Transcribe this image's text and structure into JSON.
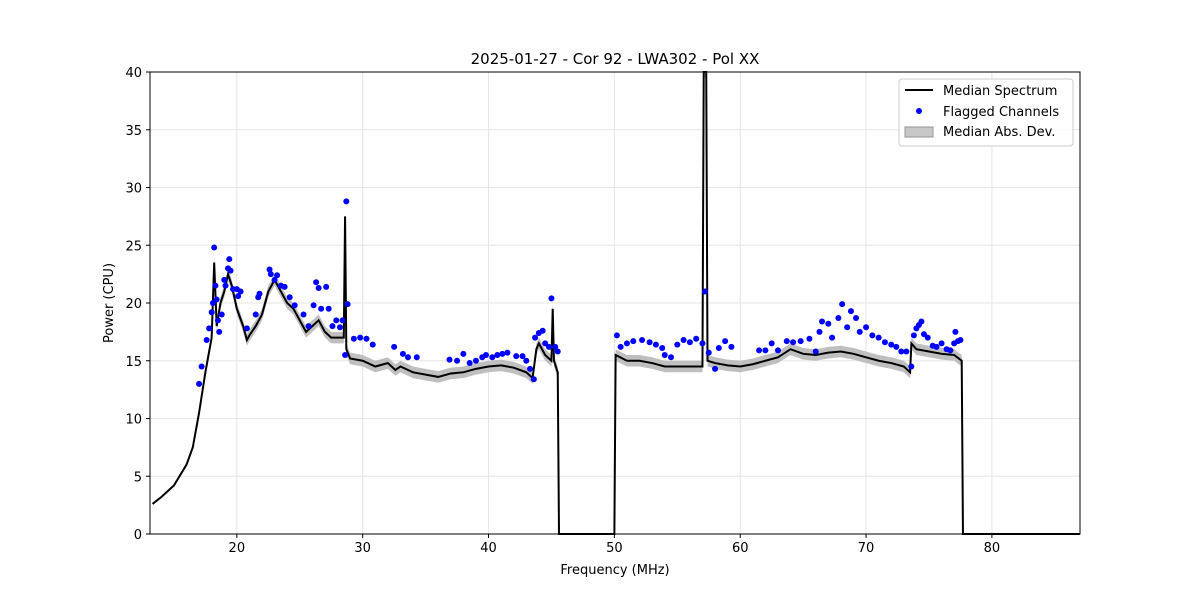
{
  "chart_data": {
    "type": "line",
    "title": "2025-01-27 - Cor 92 - LWA302 - Pol XX",
    "xlabel": "Frequency (MHz)",
    "ylabel": "Power (CPU)",
    "xlim": [
      13.1,
      87.0
    ],
    "ylim": [
      0,
      40
    ],
    "xticks": [
      20,
      30,
      40,
      50,
      60,
      70,
      80
    ],
    "yticks": [
      0,
      5,
      10,
      15,
      20,
      25,
      30,
      35,
      40
    ],
    "grid": true,
    "legend_placement": "top-right",
    "legend": [
      "Median Spectrum",
      "Flagged Channels",
      "Median Abs. Dev."
    ],
    "colors": {
      "median": "#000000",
      "flagged": "#0000ff",
      "mad": "#bfbfbf"
    },
    "mad_halfwidth": 0.5,
    "median_spectrum": [
      [
        13.3,
        2.6
      ],
      [
        14,
        3.2
      ],
      [
        15,
        4.2
      ],
      [
        16,
        6
      ],
      [
        16.5,
        7.5
      ],
      [
        17,
        10.5
      ],
      [
        17.5,
        14
      ],
      [
        18,
        17
      ],
      [
        18.2,
        23.5
      ],
      [
        18.4,
        18
      ],
      [
        18.7,
        20
      ],
      [
        19,
        21
      ],
      [
        19.3,
        22.5
      ],
      [
        19.6,
        21.5
      ],
      [
        20,
        19.5
      ],
      [
        20.5,
        18
      ],
      [
        20.8,
        16.8
      ],
      [
        21,
        17.2
      ],
      [
        21.5,
        18
      ],
      [
        22,
        19
      ],
      [
        22.5,
        21
      ],
      [
        23,
        22
      ],
      [
        23.5,
        21
      ],
      [
        24,
        20
      ],
      [
        24.5,
        19.5
      ],
      [
        25,
        18.5
      ],
      [
        25.5,
        17.5
      ],
      [
        26,
        18
      ],
      [
        26.5,
        18.5
      ],
      [
        27,
        17.5
      ],
      [
        27.5,
        17
      ],
      [
        28,
        17
      ],
      [
        28.5,
        17
      ],
      [
        28.6,
        27.5
      ],
      [
        28.7,
        16
      ],
      [
        29,
        15.2
      ],
      [
        30,
        15
      ],
      [
        31,
        14.5
      ],
      [
        32,
        14.8
      ],
      [
        32.6,
        14.2
      ],
      [
        33,
        14.5
      ],
      [
        34,
        14
      ],
      [
        35,
        13.8
      ],
      [
        36,
        13.6
      ],
      [
        37,
        13.9
      ],
      [
        38,
        14
      ],
      [
        39,
        14.3
      ],
      [
        40,
        14.5
      ],
      [
        41,
        14.6
      ],
      [
        42,
        14.4
      ],
      [
        43,
        14
      ],
      [
        43.5,
        13.5
      ],
      [
        43.8,
        16
      ],
      [
        44,
        16.5
      ],
      [
        44.5,
        15.5
      ],
      [
        45,
        15
      ],
      [
        45.1,
        19.5
      ],
      [
        45.2,
        15
      ],
      [
        45.5,
        14
      ],
      [
        45.6,
        0
      ],
      [
        50,
        0
      ],
      [
        50.1,
        15.5
      ],
      [
        51,
        15
      ],
      [
        52,
        15
      ],
      [
        53,
        14.8
      ],
      [
        54,
        14.5
      ],
      [
        55,
        14.5
      ],
      [
        56,
        14.5
      ],
      [
        57,
        14.5
      ],
      [
        57.1,
        40
      ],
      [
        57.3,
        40
      ],
      [
        57.4,
        15
      ],
      [
        58,
        14.8
      ],
      [
        59,
        14.6
      ],
      [
        60,
        14.5
      ],
      [
        61,
        14.7
      ],
      [
        62,
        15
      ],
      [
        63,
        15.3
      ],
      [
        64,
        16
      ],
      [
        65,
        15.6
      ],
      [
        66,
        15.5
      ],
      [
        67,
        15.7
      ],
      [
        68,
        15.8
      ],
      [
        69,
        15.6
      ],
      [
        70,
        15.3
      ],
      [
        71,
        15
      ],
      [
        72,
        14.8
      ],
      [
        73,
        14.5
      ],
      [
        73.5,
        14
      ],
      [
        73.6,
        16.5
      ],
      [
        74,
        16
      ],
      [
        75,
        15.8
      ],
      [
        76,
        15.6
      ],
      [
        77,
        15.5
      ],
      [
        77.6,
        15
      ],
      [
        77.7,
        0
      ],
      [
        87,
        0
      ]
    ],
    "flagged_channels": [
      [
        17.0,
        13
      ],
      [
        17.2,
        14.5
      ],
      [
        17.6,
        16.8
      ],
      [
        17.8,
        17.8
      ],
      [
        18.0,
        19.2
      ],
      [
        18.1,
        20
      ],
      [
        18.2,
        24.8
      ],
      [
        18.3,
        21.5
      ],
      [
        18.4,
        20.3
      ],
      [
        18.5,
        18.5
      ],
      [
        18.6,
        17.5
      ],
      [
        18.8,
        19
      ],
      [
        19.0,
        22
      ],
      [
        19.1,
        21.5
      ],
      [
        19.3,
        23
      ],
      [
        19.4,
        23.8
      ],
      [
        19.5,
        22.8
      ],
      [
        19.7,
        21.2
      ],
      [
        20.0,
        21.2
      ],
      [
        20.1,
        20.6
      ],
      [
        20.3,
        21
      ],
      [
        20.8,
        17.8
      ],
      [
        21.5,
        19
      ],
      [
        21.7,
        20.5
      ],
      [
        21.8,
        20.8
      ],
      [
        22.6,
        22.9
      ],
      [
        22.7,
        22.5
      ],
      [
        23.0,
        22
      ],
      [
        23.2,
        22.4
      ],
      [
        23.5,
        21.5
      ],
      [
        23.8,
        21.4
      ],
      [
        24.2,
        20.5
      ],
      [
        24.6,
        19.8
      ],
      [
        25.3,
        19
      ],
      [
        25.7,
        18
      ],
      [
        26.1,
        19.8
      ],
      [
        26.3,
        21.8
      ],
      [
        26.5,
        21.3
      ],
      [
        26.7,
        19.5
      ],
      [
        27.1,
        21.4
      ],
      [
        27.3,
        19.5
      ],
      [
        27.6,
        18
      ],
      [
        27.9,
        18.5
      ],
      [
        28.2,
        17.9
      ],
      [
        28.4,
        18.5
      ],
      [
        28.7,
        28.8
      ],
      [
        28.8,
        19.9
      ],
      [
        28.6,
        15.5
      ],
      [
        29.3,
        16.9
      ],
      [
        29.8,
        17
      ],
      [
        30.3,
        16.9
      ],
      [
        30.8,
        16.4
      ],
      [
        32.5,
        16.2
      ],
      [
        33.2,
        15.6
      ],
      [
        33.6,
        15.3
      ],
      [
        34.3,
        15.3
      ],
      [
        36.9,
        15.1
      ],
      [
        37.5,
        15
      ],
      [
        38.0,
        15.6
      ],
      [
        38.5,
        14.8
      ],
      [
        39.0,
        15
      ],
      [
        39.5,
        15.3
      ],
      [
        39.8,
        15.5
      ],
      [
        40.3,
        15.3
      ],
      [
        40.7,
        15.5
      ],
      [
        41.1,
        15.6
      ],
      [
        41.5,
        15.7
      ],
      [
        42.2,
        15.4
      ],
      [
        42.7,
        15.4
      ],
      [
        43.0,
        15
      ],
      [
        43.3,
        14.3
      ],
      [
        43.6,
        13.4
      ],
      [
        43.7,
        17
      ],
      [
        44.0,
        17.4
      ],
      [
        44.3,
        17.6
      ],
      [
        44.5,
        16.5
      ],
      [
        44.8,
        16.2
      ],
      [
        45.0,
        20.4
      ],
      [
        45.3,
        16.2
      ],
      [
        45.5,
        15.8
      ],
      [
        50.2,
        17.2
      ],
      [
        50.5,
        16.2
      ],
      [
        51.0,
        16.5
      ],
      [
        51.5,
        16.7
      ],
      [
        52.2,
        16.8
      ],
      [
        52.8,
        16.6
      ],
      [
        53.3,
        16.4
      ],
      [
        53.8,
        16.1
      ],
      [
        54.0,
        15.5
      ],
      [
        54.5,
        15.3
      ],
      [
        55.0,
        16.4
      ],
      [
        55.5,
        16.8
      ],
      [
        56.0,
        16.6
      ],
      [
        56.5,
        16.9
      ],
      [
        57.0,
        16.5
      ],
      [
        57.2,
        21
      ],
      [
        57.5,
        15.7
      ],
      [
        58.0,
        14.3
      ],
      [
        58.3,
        16.1
      ],
      [
        58.8,
        16.7
      ],
      [
        59.3,
        16.2
      ],
      [
        61.5,
        15.9
      ],
      [
        62.0,
        15.9
      ],
      [
        62.5,
        16.5
      ],
      [
        63.0,
        15.9
      ],
      [
        63.7,
        16.7
      ],
      [
        64.2,
        16.6
      ],
      [
        64.8,
        16.7
      ],
      [
        65.5,
        16.9
      ],
      [
        66.0,
        15.8
      ],
      [
        66.3,
        17.5
      ],
      [
        66.5,
        18.4
      ],
      [
        67.0,
        18.2
      ],
      [
        67.3,
        17
      ],
      [
        67.8,
        18.7
      ],
      [
        68.1,
        19.9
      ],
      [
        68.5,
        17.9
      ],
      [
        68.8,
        19.3
      ],
      [
        69.2,
        18.7
      ],
      [
        69.5,
        17.5
      ],
      [
        70.0,
        17.9
      ],
      [
        70.5,
        17.2
      ],
      [
        71.0,
        17
      ],
      [
        71.5,
        16.6
      ],
      [
        72.0,
        16.4
      ],
      [
        72.4,
        16.2
      ],
      [
        72.8,
        15.8
      ],
      [
        73.2,
        15.8
      ],
      [
        73.6,
        14.5
      ],
      [
        73.8,
        17.2
      ],
      [
        74.0,
        17.8
      ],
      [
        74.2,
        18.1
      ],
      [
        74.4,
        18.4
      ],
      [
        74.6,
        17.3
      ],
      [
        74.9,
        17
      ],
      [
        75.3,
        16.3
      ],
      [
        75.6,
        16.2
      ],
      [
        76.0,
        16.5
      ],
      [
        76.4,
        16
      ],
      [
        76.7,
        15.9
      ],
      [
        77.0,
        16.5
      ],
      [
        77.1,
        17.5
      ],
      [
        77.3,
        16.7
      ],
      [
        77.5,
        16.8
      ]
    ]
  }
}
